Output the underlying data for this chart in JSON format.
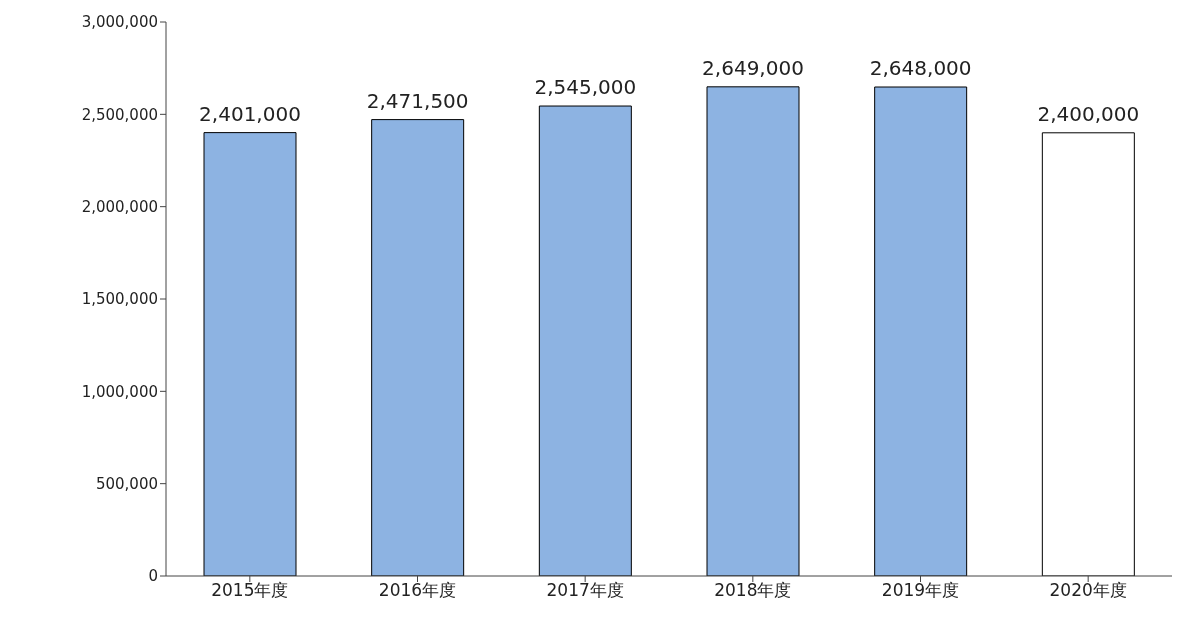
{
  "chart_data": {
    "type": "bar",
    "categories": [
      "2015年度",
      "2016年度",
      "2017年度",
      "2018年度",
      "2019年度",
      "2020年度"
    ],
    "values": [
      2401000,
      2471500,
      2545000,
      2649000,
      2648000,
      2400000
    ],
    "value_labels": [
      "2,401,000",
      "2,471,500",
      "2,545,000",
      "2,649,000",
      "2,648,000",
      "2,400,000"
    ],
    "colors": [
      "#8db3e2",
      "#8db3e2",
      "#8db3e2",
      "#8db3e2",
      "#8db3e2",
      "#ffffff"
    ],
    "ylim": [
      0,
      3000000
    ],
    "yticks": [
      0,
      {
        "value": 500000,
        "label": "500,000"
      },
      {
        "value": 1000000,
        "label": "1,000,000"
      },
      {
        "value": 1500000,
        "label": "1,500,000"
      },
      {
        "value": 2000000,
        "label": "2,000,000"
      },
      {
        "value": 2500000,
        "label": "2,500,000"
      },
      {
        "value": 3000000,
        "label": "3,000,000"
      }
    ],
    "grid": false,
    "legend": false
  }
}
